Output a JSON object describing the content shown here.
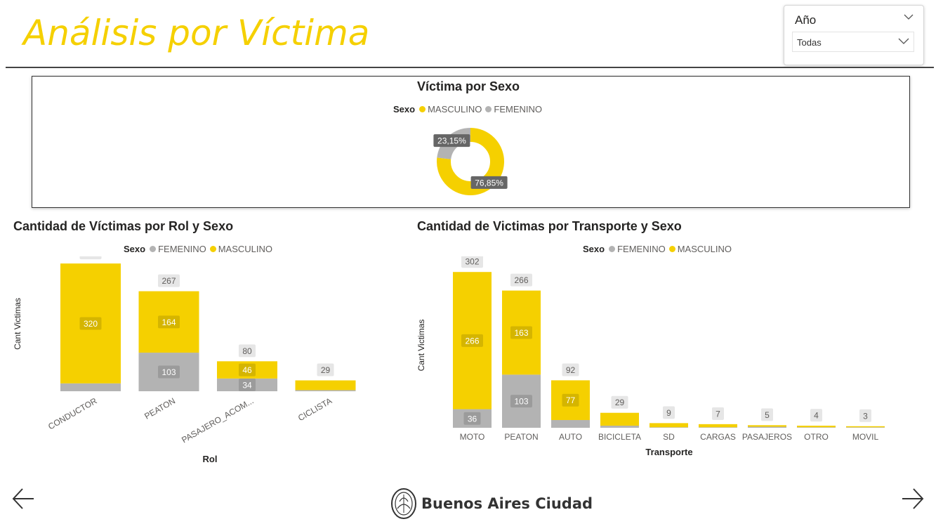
{
  "page": {
    "title": "Análisis por Víctima",
    "logo_text": "Buenos Aires Ciudad"
  },
  "colors": {
    "masculino": "#F5D000",
    "femenino": "#B3B3B3",
    "title": "#F5D000"
  },
  "icons": {
    "prev": "arrow-left-icon",
    "next": "arrow-right-icon",
    "logo": "city-seal-icon"
  },
  "slicer": {
    "title": "Año",
    "value": "Todas"
  },
  "chart_data": [
    {
      "id": "sexo",
      "type": "pie",
      "title": "Víctima por Sexo",
      "legend_title": "Sexo",
      "legend": [
        "MASCULINO",
        "FEMENINO"
      ],
      "legend_placement": "top-center",
      "slices": [
        {
          "name": "MASCULINO",
          "value": 76.85,
          "label": "76,85%"
        },
        {
          "name": "FEMENINO",
          "value": 23.15,
          "label": "23,15%"
        }
      ]
    },
    {
      "id": "rol",
      "type": "bar",
      "stacked": true,
      "title": "Cantidad de Víctimas por Rol y Sexo",
      "legend_title": "Sexo",
      "legend": [
        "FEMENINO",
        "MASCULINO"
      ],
      "legend_placement": "top-center",
      "xlabel": "Rol",
      "ylabel": "Cant Victimas",
      "categories": [
        "CONDUCTOR",
        "PEATON",
        "PASAJERO_ACOM...",
        "CICLISTA"
      ],
      "series": [
        {
          "name": "FEMENINO",
          "values": [
            21,
            103,
            34,
            3
          ],
          "labels": [
            "",
            "103",
            "34",
            ""
          ]
        },
        {
          "name": "MASCULINO",
          "values": [
            320,
            164,
            46,
            26
          ],
          "labels": [
            "320",
            "164",
            "46",
            ""
          ]
        }
      ],
      "totals": [
        341,
        267,
        80,
        29
      ],
      "ylim": [
        0,
        360
      ]
    },
    {
      "id": "transporte",
      "type": "bar",
      "stacked": true,
      "title": "Cantidad de Victimas por Transporte y Sexo",
      "legend_title": "Sexo",
      "legend": [
        "FEMENINO",
        "MASCULINO"
      ],
      "legend_placement": "top-center",
      "xlabel": "Transporte",
      "ylabel": "Cant Victimas",
      "categories": [
        "MOTO",
        "PEATON",
        "AUTO",
        "BICICLETA",
        "SD",
        "CARGAS",
        "PASAJEROS",
        "OTRO",
        "MOVIL"
      ],
      "series": [
        {
          "name": "FEMENINO",
          "values": [
            36,
            103,
            15,
            4,
            1,
            1,
            2,
            1,
            1
          ],
          "labels": [
            "36",
            "103",
            "",
            "",
            "",
            "",
            "",
            "",
            ""
          ]
        },
        {
          "name": "MASCULINO",
          "values": [
            266,
            163,
            77,
            25,
            8,
            6,
            3,
            3,
            2
          ],
          "labels": [
            "266",
            "163",
            "77",
            "",
            "",
            "",
            "",
            "",
            ""
          ]
        }
      ],
      "totals": [
        302,
        266,
        92,
        29,
        9,
        7,
        5,
        4,
        3
      ],
      "ylim": [
        0,
        320
      ]
    }
  ]
}
